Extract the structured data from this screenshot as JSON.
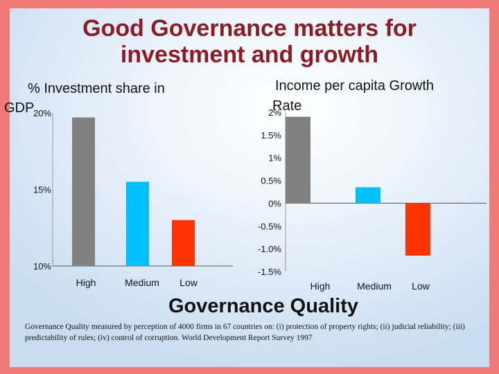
{
  "slide": {
    "title_line1": "Good Governance matters for",
    "title_line2": "investment and growth",
    "footer_label": "Governance Quality",
    "footnote": "Governance Quality measured by perception of 4000 firms in 67 countries on: (i) protection of property rights; (ii) judicial reliability; (iii) predictability of rules; (iv) control of corruption.  World Development Report Survey 1997"
  },
  "colors": {
    "title": "#8a1c26",
    "high": "#808080",
    "medium": "#00bfff",
    "low": "#ff3300",
    "bg_top": "#f07a78",
    "bg_main": "#ffffff"
  },
  "chart_data": [
    {
      "type": "bar",
      "title_line1": "% Investment share in",
      "title_line2": "GDP",
      "categories": [
        "High",
        "Medium",
        "Low"
      ],
      "values": [
        19.7,
        15.5,
        13.0
      ],
      "ylim": [
        10,
        20
      ],
      "ytick_values": [
        20,
        15,
        10
      ],
      "ytick_labels": [
        "20%",
        "15%",
        "10%"
      ],
      "xlabel": "Governance Quality",
      "ylabel": ""
    },
    {
      "type": "bar",
      "title_line1": "Income per capita Growth",
      "title_line2": "Rate",
      "categories": [
        "High",
        "Medium",
        "Low"
      ],
      "values": [
        1.9,
        0.35,
        -1.15
      ],
      "ylim": [
        -1.5,
        2
      ],
      "ytick_values": [
        2,
        1.5,
        1,
        0.5,
        0,
        -0.5,
        -1.0,
        -1.5
      ],
      "ytick_labels": [
        "2%",
        "1.5%",
        "1%",
        "0.5%",
        "0%",
        "-0.5%",
        "-1.0%",
        "-1.5%"
      ],
      "xlabel": "Governance Quality",
      "ylabel": ""
    }
  ]
}
